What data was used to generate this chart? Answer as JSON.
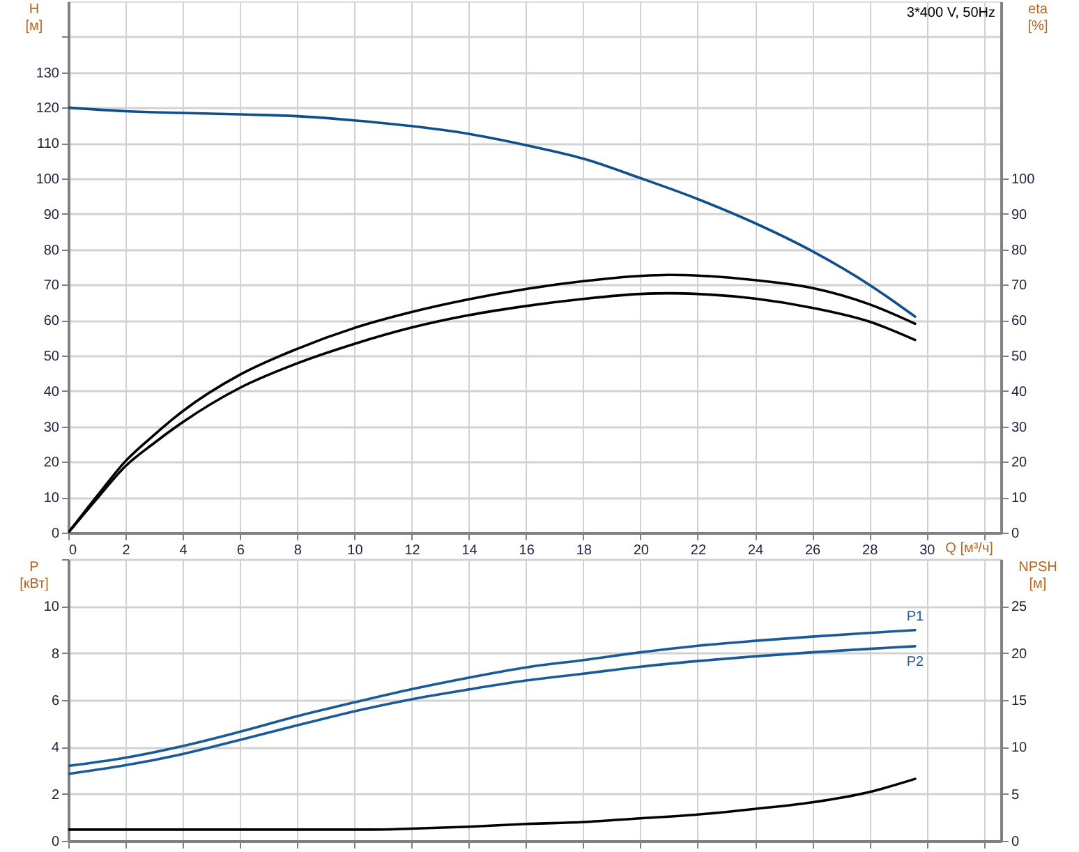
{
  "chart_data": [
    {
      "type": "line",
      "title": "3*400 V, 50Hz",
      "xlabel": "Q [м³/ч]",
      "ylabel": "H\n[м]",
      "y2label": "eta\n[%]",
      "xlim": [
        0,
        32.6
      ],
      "xticks": [
        0,
        2,
        4,
        6,
        8,
        10,
        12,
        14,
        16,
        18,
        20,
        22,
        24,
        26,
        28,
        30,
        {
          "value": 32,
          "label": null
        }
      ],
      "ylim": [
        0,
        150
      ],
      "yticks": [
        0,
        10,
        20,
        30,
        40,
        50,
        60,
        70,
        80,
        90,
        100,
        110,
        120,
        130,
        {
          "value": 140,
          "label": null
        }
      ],
      "y2lim": [
        0,
        150
      ],
      "y2ticks": [
        0,
        10,
        20,
        30,
        40,
        50,
        60,
        70,
        80,
        90,
        100
      ],
      "grid": true,
      "legend": false,
      "marker": "none",
      "line_style": "solid",
      "series": [
        {
          "color": "#0e4f8c",
          "x": [
            0,
            2,
            4,
            6,
            8,
            10,
            12,
            14,
            16,
            18,
            20,
            22,
            24,
            26,
            28,
            29.6
          ],
          "values": [
            120,
            119,
            118.5,
            118.1,
            117.6,
            116.4,
            114.8,
            112.6,
            109.4,
            105.6,
            100.1,
            94.2,
            87.4,
            79.5,
            70,
            61
          ]
        },
        {
          "color": "#000000",
          "axis": "y2",
          "x": [
            0,
            1,
            2,
            3,
            4,
            6,
            8,
            10,
            12,
            14,
            16,
            18,
            20,
            21,
            22,
            24,
            26,
            28,
            29.6
          ],
          "values": [
            0,
            10.3,
            20.2,
            27.6,
            34.3,
            44.6,
            51.9,
            57.8,
            62.3,
            65.9,
            68.8,
            71,
            72.5,
            72.8,
            72.6,
            71.3,
            69.1,
            64.5,
            59
          ]
        },
        {
          "color": "#000000",
          "axis": "y2",
          "x": [
            0,
            1,
            2,
            3,
            4,
            6,
            8,
            10,
            12,
            14,
            16,
            18,
            20,
            21,
            22,
            24,
            26,
            28,
            29.6
          ],
          "values": [
            0,
            9.6,
            18.8,
            25.3,
            31.2,
            40.9,
            47.8,
            53.3,
            57.9,
            61.4,
            64,
            66,
            67.4,
            67.6,
            67.4,
            66.1,
            63.5,
            59.6,
            54.4
          ]
        }
      ]
    },
    {
      "type": "line",
      "ylabel": "P\n[кВт]",
      "y2label": "NPSH\n[м]",
      "xlim": [
        0,
        32.6
      ],
      "xticks": [
        0,
        2,
        4,
        6,
        8,
        10,
        12,
        14,
        16,
        18,
        20,
        22,
        24,
        26,
        28,
        30,
        {
          "value": 32,
          "label": null
        }
      ],
      "ylim": [
        0,
        12
      ],
      "yticks": [
        0,
        2,
        4,
        6,
        8,
        10,
        {
          "value": 12,
          "label": null
        }
      ],
      "y2lim": [
        0,
        30
      ],
      "y2ticks": [
        0,
        5,
        10,
        15,
        20,
        25
      ],
      "tick_labels": "y",
      "grid": true,
      "legend": false,
      "marker": "none",
      "line_style": "solid",
      "series": [
        {
          "name": "P1",
          "color": "#1b5a99",
          "x": [
            0,
            2,
            4,
            6,
            8,
            10,
            12,
            14,
            16,
            18,
            20,
            22,
            24,
            26,
            28,
            29.6
          ],
          "values": [
            3.19,
            3.54,
            4.04,
            4.65,
            5.31,
            5.9,
            6.46,
            6.95,
            7.39,
            7.7,
            8.03,
            8.31,
            8.52,
            8.7,
            8.86,
            8.98
          ]
        },
        {
          "name": "P2",
          "color": "#1b5a99",
          "x": [
            0,
            2,
            4,
            6,
            8,
            10,
            12,
            14,
            16,
            18,
            20,
            22,
            24,
            26,
            28,
            29.6
          ],
          "values": [
            2.85,
            3.22,
            3.7,
            4.3,
            4.92,
            5.52,
            6.03,
            6.45,
            6.83,
            7.12,
            7.42,
            7.66,
            7.86,
            8.03,
            8.18,
            8.29
          ]
        },
        {
          "color": "#000000",
          "axis": "y2",
          "x": [
            0,
            4,
            8,
            10.6,
            12,
            14,
            16,
            18,
            20,
            22,
            24,
            26,
            28,
            29.6
          ],
          "values": [
            1.2,
            1.2,
            1.2,
            1.2,
            1.3,
            1.5,
            1.8,
            2,
            2.4,
            2.8,
            3.4,
            4.1,
            5.2,
            6.6
          ]
        }
      ]
    }
  ]
}
